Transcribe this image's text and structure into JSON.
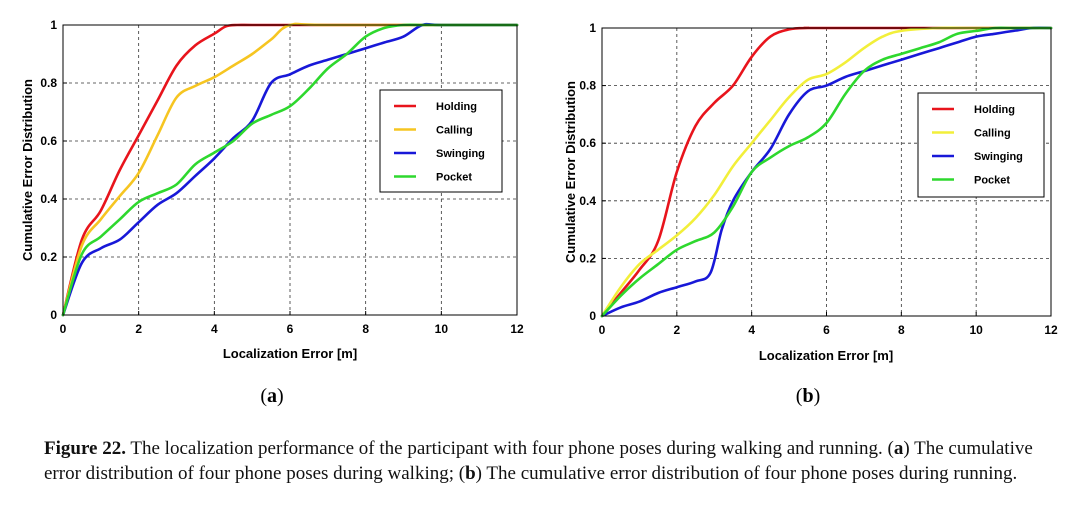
{
  "chart_data": [
    {
      "type": "line",
      "panel_label": "(a)",
      "xlabel": "Localization Error [m]",
      "ylabel": "Cumulative Error Distribution",
      "xlim": [
        0,
        12
      ],
      "ylim": [
        0,
        1
      ],
      "xticks": [
        "0",
        "2",
        "4",
        "6",
        "8",
        "10",
        "12"
      ],
      "yticks": [
        "0",
        "0.2",
        "0.4",
        "0.6",
        "0.8",
        "1"
      ],
      "grid": true,
      "legend_position": "right-middle",
      "series": [
        {
          "name": "Holding",
          "color": "#e8141c",
          "x": [
            0,
            0.5,
            1,
            1.5,
            2,
            2.5,
            3,
            3.5,
            4,
            4.3,
            4.6,
            5,
            6,
            12
          ],
          "y": [
            0,
            0.26,
            0.36,
            0.5,
            0.62,
            0.74,
            0.86,
            0.93,
            0.97,
            0.995,
            1,
            1,
            1,
            1
          ]
        },
        {
          "name": "Calling",
          "color": "#f6c521",
          "x": [
            0,
            0.5,
            1,
            1.5,
            2,
            2.5,
            3,
            3.5,
            4,
            4.5,
            5,
            5.5,
            6,
            7,
            12
          ],
          "y": [
            0,
            0.24,
            0.33,
            0.41,
            0.49,
            0.62,
            0.75,
            0.79,
            0.82,
            0.86,
            0.9,
            0.95,
            1,
            1,
            1
          ]
        },
        {
          "name": "Swinging",
          "color": "#1818d8",
          "x": [
            0,
            0.5,
            1,
            1.5,
            2,
            2.5,
            3,
            3.5,
            4,
            4.5,
            5,
            5.5,
            6,
            6.5,
            7,
            7.5,
            8,
            8.5,
            9,
            9.5,
            10,
            12
          ],
          "y": [
            0,
            0.18,
            0.23,
            0.26,
            0.32,
            0.38,
            0.42,
            0.48,
            0.54,
            0.61,
            0.67,
            0.8,
            0.83,
            0.86,
            0.88,
            0.9,
            0.92,
            0.94,
            0.96,
            1,
            1,
            1
          ]
        },
        {
          "name": "Pocket",
          "color": "#2ed82e",
          "x": [
            0,
            0.5,
            1,
            1.5,
            2,
            2.5,
            3,
            3.5,
            4,
            4.5,
            5,
            5.5,
            6,
            6.5,
            7,
            7.5,
            8,
            8.5,
            9,
            9.5,
            10,
            12
          ],
          "y": [
            0,
            0.21,
            0.27,
            0.33,
            0.39,
            0.42,
            0.45,
            0.52,
            0.56,
            0.6,
            0.66,
            0.69,
            0.72,
            0.78,
            0.85,
            0.9,
            0.96,
            0.99,
            1,
            1,
            1,
            1
          ]
        }
      ]
    },
    {
      "type": "line",
      "panel_label": "(b)",
      "xlabel": "Localization Error [m]",
      "ylabel": "Cumulative Error Distribution",
      "xlim": [
        0,
        12
      ],
      "ylim": [
        0,
        1
      ],
      "xticks": [
        "0",
        "2",
        "4",
        "6",
        "8",
        "10",
        "12"
      ],
      "yticks": [
        "0",
        "0.2",
        "0.4",
        "0.6",
        "0.8",
        "1"
      ],
      "grid": true,
      "legend_position": "right-middle",
      "series": [
        {
          "name": "Holding",
          "color": "#e8141c",
          "x": [
            0,
            0.5,
            1,
            1.5,
            2,
            2.5,
            3,
            3.5,
            4,
            4.5,
            5,
            5.5,
            6,
            12
          ],
          "y": [
            0,
            0.08,
            0.16,
            0.26,
            0.5,
            0.66,
            0.74,
            0.8,
            0.9,
            0.97,
            0.995,
            1,
            1,
            1
          ]
        },
        {
          "name": "Calling",
          "color": "#f2ef3a",
          "x": [
            0,
            0.5,
            1,
            1.5,
            2,
            2.5,
            3,
            3.5,
            4,
            4.5,
            5,
            5.5,
            6,
            6.5,
            7,
            7.5,
            8,
            9,
            10,
            12
          ],
          "y": [
            0,
            0.1,
            0.18,
            0.23,
            0.28,
            0.34,
            0.42,
            0.52,
            0.6,
            0.68,
            0.76,
            0.82,
            0.84,
            0.88,
            0.93,
            0.97,
            0.99,
            1,
            1,
            1
          ]
        },
        {
          "name": "Swinging",
          "color": "#1818d8",
          "x": [
            0,
            0.5,
            1,
            1.5,
            2,
            2.5,
            2.9,
            3.2,
            3.5,
            4,
            4.5,
            5,
            5.5,
            6,
            6.5,
            7,
            7.5,
            8,
            8.5,
            9,
            9.5,
            10,
            10.5,
            11,
            11.5,
            12
          ],
          "y": [
            0,
            0.03,
            0.05,
            0.08,
            0.1,
            0.12,
            0.15,
            0.3,
            0.4,
            0.5,
            0.58,
            0.7,
            0.78,
            0.8,
            0.83,
            0.85,
            0.87,
            0.89,
            0.91,
            0.93,
            0.95,
            0.97,
            0.98,
            0.99,
            1,
            1
          ]
        },
        {
          "name": "Pocket",
          "color": "#2ed82e",
          "x": [
            0,
            0.5,
            1,
            1.5,
            2,
            2.5,
            3,
            3.5,
            4,
            4.5,
            5,
            5.5,
            6,
            6.5,
            7,
            7.5,
            8,
            8.5,
            9,
            9.5,
            10,
            10.5,
            11,
            12
          ],
          "y": [
            0,
            0.07,
            0.13,
            0.18,
            0.23,
            0.26,
            0.29,
            0.38,
            0.5,
            0.55,
            0.59,
            0.62,
            0.67,
            0.77,
            0.85,
            0.89,
            0.91,
            0.93,
            0.95,
            0.98,
            0.99,
            1,
            1,
            1
          ]
        }
      ]
    }
  ],
  "caption": {
    "label": "Figure 22.",
    "part1": " The localization performance of the participant with four phone poses during walking and running. (",
    "a": "a",
    "part2": ") The cumulative error distribution of four phone poses during walking; (",
    "b": "b",
    "part3": ") The cumulative error distribution of four phone poses during running."
  }
}
